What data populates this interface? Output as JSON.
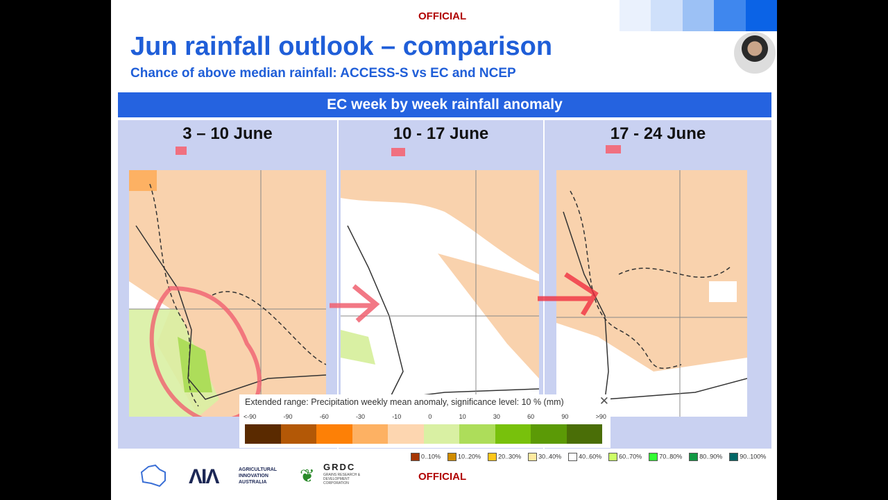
{
  "header": {
    "official_top": "OFFICIAL",
    "title": "Jun rainfall outlook – comparison",
    "subtitle": "Chance of above median rainfall: ACCESS-S vs EC and NCEP"
  },
  "banner": "EC week by week rainfall anomaly",
  "panels": [
    {
      "title": "3 – 10 June"
    },
    {
      "title": "10 - 17 June"
    },
    {
      "title": "17 - 24 June"
    }
  ],
  "legend": {
    "title": "Extended range: Precipitation weekly mean anomaly, significance level: 10 % (mm)",
    "close": "✕",
    "ticks": [
      "<-90",
      "-90",
      "-60",
      "-30",
      "-10",
      "0",
      "10",
      "30",
      "60",
      "90",
      ">90"
    ],
    "colors": [
      "#5a2a00",
      "#b35806",
      "#fd8006",
      "#fdb163",
      "#fdd6b0",
      "#d9f0a3",
      "#addd5a",
      "#78c10c",
      "#5b9a06",
      "#4a6e07"
    ]
  },
  "probability_legend": [
    {
      "label": "0..10%",
      "color": "#a63603"
    },
    {
      "label": "10..20%",
      "color": "#d08c00"
    },
    {
      "label": "20..30%",
      "color": "#ffc61a"
    },
    {
      "label": "30..40%",
      "color": "#ffeaa0"
    },
    {
      "label": "40..60%",
      "color": "#ffffff"
    },
    {
      "label": "60..70%",
      "color": "#ccff66"
    },
    {
      "label": "70..80%",
      "color": "#33ff33"
    },
    {
      "label": "80..90%",
      "color": "#119944"
    },
    {
      "label": "90..100%",
      "color": "#006666"
    }
  ],
  "footer": {
    "official_bottom": "OFFICIAL",
    "aia_text": "AGRICULTURAL INNOVATION AUSTRALIA",
    "grdc": "GRDC",
    "grdc_text": "GRAINS RESEARCH & DEVELOPMENT CORPORATION"
  }
}
